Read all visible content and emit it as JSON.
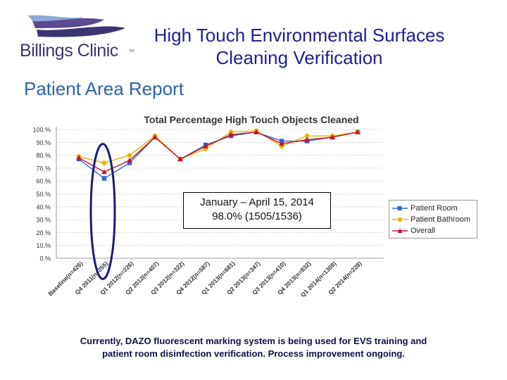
{
  "logo": {
    "name": "Billings Clinic",
    "tm": "TM",
    "colors": [
      "#8fa7d6",
      "#5b4a92",
      "#3b3571"
    ]
  },
  "slide": {
    "title_line1": "High Touch Environmental Surfaces",
    "title_line2": "Cleaning Verification",
    "section": "Patient Area Report"
  },
  "note": {
    "line1": "January – April 15, 2014",
    "line2": "98.0% (1505/1536)"
  },
  "footer": {
    "line1": "Currently, DAZO fluorescent marking system is being used for EVS training and",
    "line2": "patient room disinfection verification.  Process improvement ongoing."
  },
  "chart_data": {
    "type": "line",
    "title": "Total Percentage High Touch Objects Cleaned",
    "xlabel": "",
    "ylabel": "",
    "ylim": [
      0,
      100
    ],
    "yticks": [
      "0.%",
      "10.%",
      "20.%",
      "30.%",
      "40.%",
      "50.%",
      "60.%",
      "70.%",
      "80.%",
      "90.%",
      "100.%"
    ],
    "grid": true,
    "legend_position": "right",
    "categories": [
      "Baseline(n=426)",
      "Q4 2011(n=255)",
      "Q1 2012(n=226)",
      "Q2 2012(n=407)",
      "Q3 2012(n=322)",
      "Q4 2012(n=587)",
      "Q1 2013(n=681)",
      "Q2 2013(n=347)",
      "Q3 2013(n=410)",
      "Q4 2013(n=832)",
      "Q1 2014(n=1308)",
      "Q2 2014(n=228)"
    ],
    "series": [
      {
        "name": "Patient Room",
        "color": "#3366cc",
        "marker": "square",
        "values": [
          77,
          62,
          74,
          94,
          77,
          88,
          95,
          98,
          91,
          91,
          94,
          98
        ]
      },
      {
        "name": "Patient Bathroom",
        "color": "#e8b400",
        "marker": "circle",
        "values": [
          79,
          74,
          80,
          95,
          77,
          85,
          98,
          99,
          87,
          95,
          95,
          98
        ]
      },
      {
        "name": "Overall",
        "color": "#c8102e",
        "marker": "triangle",
        "values": [
          78,
          67,
          76,
          94,
          77,
          87,
          96,
          98,
          89,
          92,
          94,
          98
        ]
      }
    ],
    "annotations": [
      {
        "type": "ellipse",
        "color": "#1a1a7a",
        "category_index": 1
      }
    ]
  }
}
